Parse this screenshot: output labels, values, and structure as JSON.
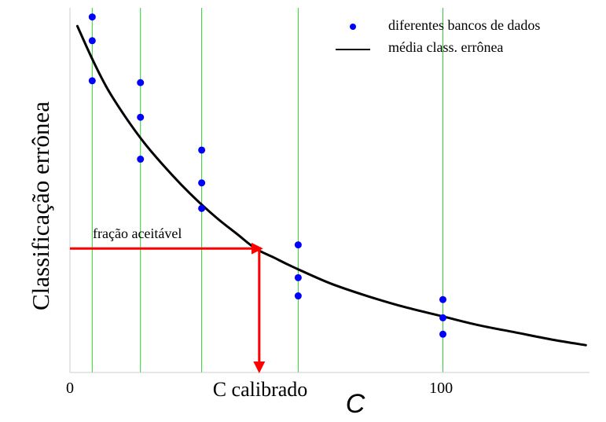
{
  "chart_data": {
    "type": "scatter",
    "xlabel": "C",
    "ylabel": "Classificação errônea",
    "x_tick_labels": [
      {
        "x": 0,
        "label": "0"
      },
      {
        "x": 100,
        "label": "100"
      }
    ],
    "xlim": [
      0,
      140
    ],
    "ylim": [
      0,
      100
    ],
    "grid_x": [
      6,
      19,
      35.5,
      61.5,
      100.5
    ],
    "legend_position": "top-right",
    "colors": {
      "points": "#0000ff",
      "curve": "#000000",
      "grid": "#33cc33",
      "annotation": "#ff0000",
      "axis": "#cccccc"
    },
    "series": [
      {
        "name": "diferentes bancos de dados",
        "kind": "points",
        "points": [
          {
            "x": 6,
            "y": 97.5
          },
          {
            "x": 6,
            "y": 91
          },
          {
            "x": 6,
            "y": 80
          },
          {
            "x": 19,
            "y": 79.5
          },
          {
            "x": 19,
            "y": 70
          },
          {
            "x": 19,
            "y": 58.5
          },
          {
            "x": 35.5,
            "y": 61
          },
          {
            "x": 35.5,
            "y": 52
          },
          {
            "x": 35.5,
            "y": 45
          },
          {
            "x": 61.5,
            "y": 35
          },
          {
            "x": 61.5,
            "y": 26
          },
          {
            "x": 61.5,
            "y": 21
          },
          {
            "x": 100.5,
            "y": 20
          },
          {
            "x": 100.5,
            "y": 15
          },
          {
            "x": 100.5,
            "y": 10.5
          }
        ]
      },
      {
        "name": "média class. errônea",
        "kind": "curve",
        "points": [
          {
            "x": 2,
            "y": 95
          },
          {
            "x": 6,
            "y": 86
          },
          {
            "x": 10,
            "y": 78
          },
          {
            "x": 15,
            "y": 70
          },
          {
            "x": 20,
            "y": 63
          },
          {
            "x": 25,
            "y": 57
          },
          {
            "x": 30,
            "y": 51.5
          },
          {
            "x": 35,
            "y": 46.5
          },
          {
            "x": 40,
            "y": 42
          },
          {
            "x": 45,
            "y": 38
          },
          {
            "x": 50,
            "y": 34
          },
          {
            "x": 55,
            "y": 31.5
          },
          {
            "x": 60,
            "y": 29
          },
          {
            "x": 70,
            "y": 24.5
          },
          {
            "x": 80,
            "y": 21
          },
          {
            "x": 90,
            "y": 18
          },
          {
            "x": 100,
            "y": 15.5
          },
          {
            "x": 110,
            "y": 13
          },
          {
            "x": 120,
            "y": 11
          },
          {
            "x": 130,
            "y": 9
          },
          {
            "x": 139,
            "y": 7.5
          }
        ]
      }
    ],
    "annotations": [
      {
        "text": "fração aceitável",
        "y": 34
      },
      {
        "text": "C calibrado",
        "x": 51
      }
    ]
  }
}
